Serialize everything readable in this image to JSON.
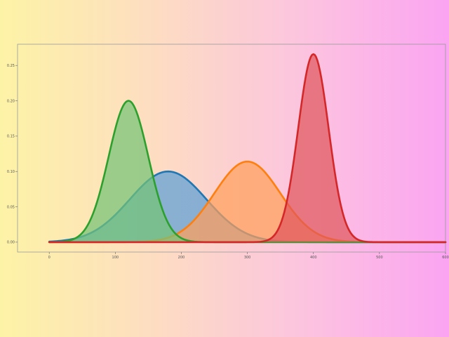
{
  "chart_data": {
    "type": "area",
    "title": "",
    "xlabel": "",
    "ylabel": "",
    "xlim": [
      -48,
      600
    ],
    "ylim": [
      -0.014,
      0.28
    ],
    "grid": false,
    "x_ticks": [
      {
        "value": 0,
        "label": "0"
      },
      {
        "value": 100,
        "label": "100"
      },
      {
        "value": 200,
        "label": "200"
      },
      {
        "value": 300,
        "label": "300"
      },
      {
        "value": 400,
        "label": "400"
      },
      {
        "value": 500,
        "label": "500"
      },
      {
        "value": 600,
        "label": "600"
      }
    ],
    "y_ticks": [
      {
        "value": 0.0,
        "label": "0.00"
      },
      {
        "value": 0.05,
        "label": "0.05"
      },
      {
        "value": 0.1,
        "label": "0.10"
      },
      {
        "value": 0.15,
        "label": "0.15"
      },
      {
        "value": 0.2,
        "label": "0.20"
      },
      {
        "value": 0.25,
        "label": "0.25"
      }
    ],
    "series": [
      {
        "color": "#1f77b4",
        "fill": "#5b9fd6",
        "x_range": [
          0,
          600
        ],
        "peak_x": 180,
        "peak_y": 0.1,
        "sd": 58
      },
      {
        "color": "#ff7f0e",
        "fill": "#ffa05a",
        "x_range": [
          0,
          600
        ],
        "peak_x": 300,
        "peak_y": 0.114,
        "sd": 50
      },
      {
        "color": "#2ca02c",
        "fill": "#74c476",
        "x_range": [
          0,
          600
        ],
        "peak_x": 120,
        "peak_y": 0.2,
        "sd": 30
      },
      {
        "color": "#d62728",
        "fill": "#e0585d",
        "x_range": [
          0,
          600
        ],
        "peak_x": 400,
        "peak_y": 0.266,
        "sd": 23
      }
    ]
  }
}
